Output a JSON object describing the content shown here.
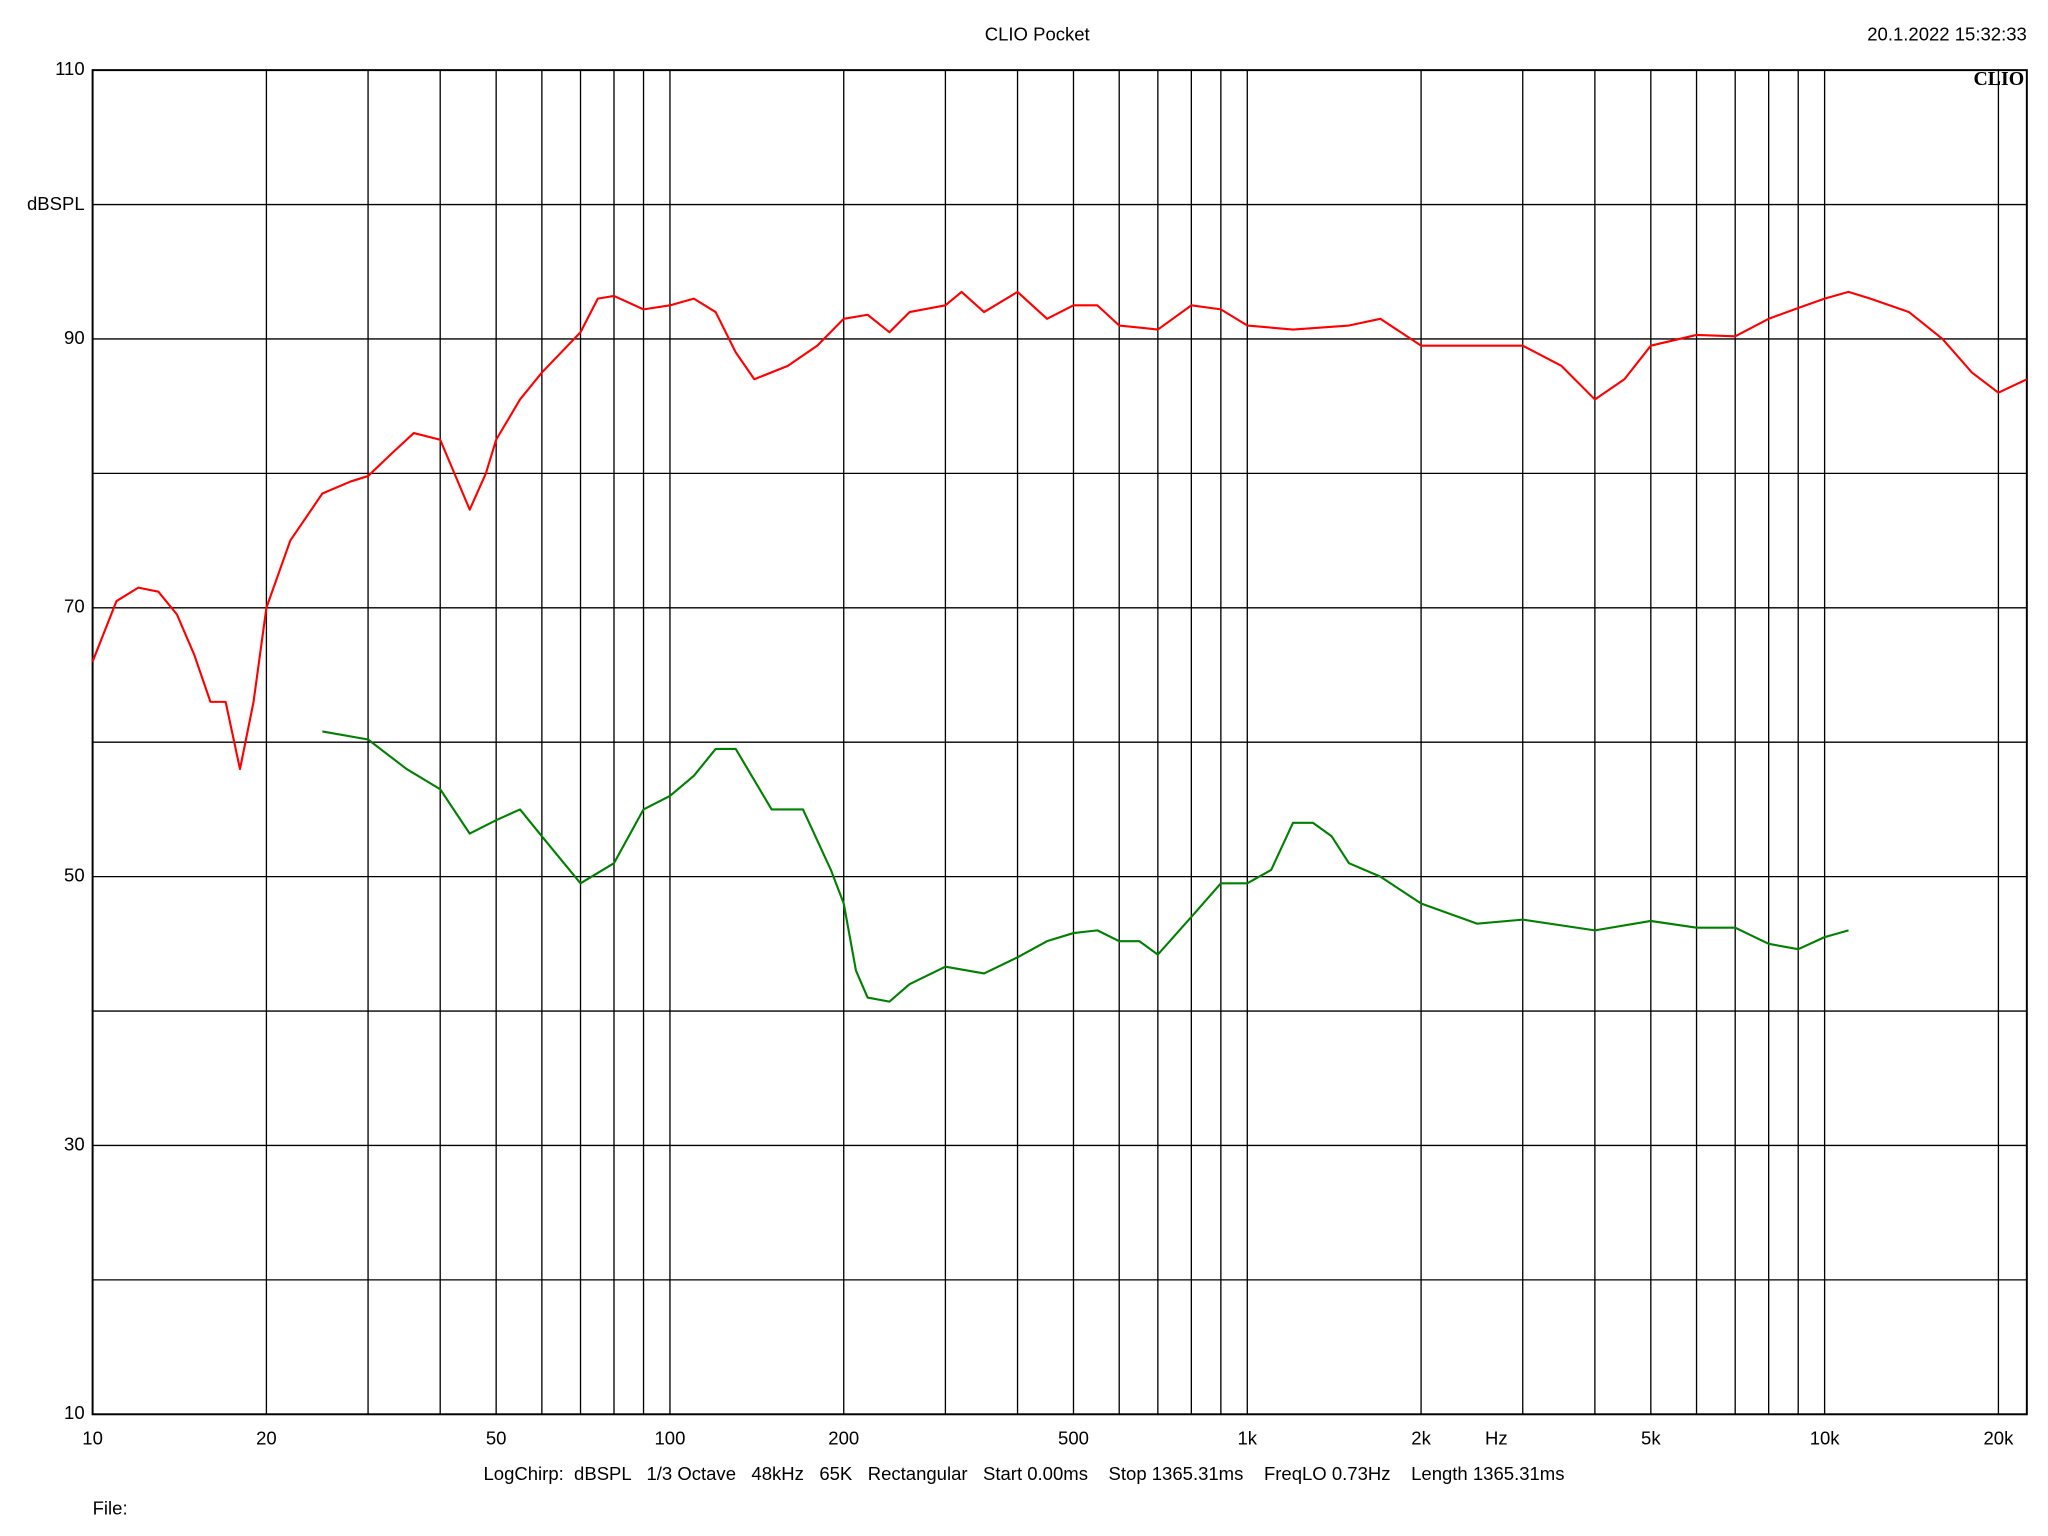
{
  "chart_data": {
    "type": "line",
    "title": "CLIO Pocket",
    "timestamp": "20.1.2022 15:32:33",
    "logo": "CLIO",
    "y_label": "dBSPL",
    "x_label": "Hz",
    "footer": "LogChirp:  dBSPL   1/3 Octave   48kHz   65K   Rectangular   Start 0.00ms    Stop 1365.31ms    FreqLO 0.73Hz    Length 1365.31ms",
    "file_label": "File:",
    "xscale": "log",
    "xlim": [
      10,
      22400
    ],
    "ylim": [
      10,
      110
    ],
    "xticks": [
      10,
      20,
      50,
      100,
      200,
      500,
      {
        "value": 1000,
        "label": "1k"
      },
      {
        "value": 2000,
        "label": "2k"
      },
      {
        "value": 5000,
        "label": "5k"
      },
      {
        "value": 10000,
        "label": "10k"
      },
      {
        "value": 20000,
        "label": "20k"
      }
    ],
    "yticks": [
      10,
      30,
      50,
      70,
      90,
      110
    ],
    "xminor": [
      30,
      40,
      60,
      70,
      80,
      90,
      300,
      400,
      600,
      700,
      800,
      900,
      3000,
      4000,
      6000,
      7000,
      8000,
      9000
    ],
    "yminor": [
      20,
      40,
      60,
      80,
      100
    ],
    "grid": true,
    "series": [
      {
        "color": "#ff0000",
        "x": [
          10,
          11,
          12,
          13,
          14,
          15,
          16,
          17,
          18,
          19,
          20,
          22,
          25,
          28,
          30,
          33,
          36,
          40,
          45,
          48,
          50,
          55,
          60,
          70,
          75,
          80,
          90,
          100,
          110,
          120,
          130,
          140,
          160,
          180,
          200,
          220,
          240,
          260,
          300,
          320,
          350,
          400,
          450,
          500,
          550,
          600,
          700,
          800,
          900,
          1000,
          1200,
          1500,
          1700,
          2000,
          2500,
          3000,
          3500,
          4000,
          4500,
          5000,
          6000,
          7000,
          8000,
          9000,
          10000,
          11000,
          12000,
          14000,
          16000,
          18000,
          20000,
          22400
        ],
        "values": [
          66,
          70.5,
          71.5,
          71.2,
          69.5,
          66.5,
          63,
          63,
          58,
          63,
          70,
          75,
          78.5,
          79.4,
          79.8,
          81.5,
          83,
          82.5,
          77.3,
          80,
          82.5,
          85.5,
          87.5,
          90.5,
          93,
          93.2,
          92.2,
          92.5,
          93,
          92,
          89,
          87,
          88,
          89.5,
          91.5,
          91.8,
          90.5,
          92,
          92.5,
          93.5,
          92,
          93.5,
          91.5,
          92.5,
          92.5,
          91,
          90.7,
          92.5,
          92.2,
          91,
          90.7,
          91,
          91.5,
          89.5,
          89.5,
          89.5,
          88,
          85.5,
          87,
          89.5,
          90.3,
          90.2,
          91.5,
          92.3,
          93,
          93.5,
          93,
          92,
          90,
          87.5,
          86,
          87
        ]
      },
      {
        "color": "#008000",
        "x": [
          25,
          30,
          35,
          40,
          45,
          50,
          55,
          60,
          70,
          80,
          90,
          100,
          110,
          120,
          130,
          150,
          170,
          190,
          200,
          210,
          220,
          240,
          260,
          300,
          350,
          400,
          450,
          500,
          550,
          600,
          650,
          700,
          800,
          900,
          1000,
          1100,
          1200,
          1300,
          1400,
          1500,
          1700,
          2000,
          2500,
          3000,
          4000,
          5000,
          6000,
          7000,
          8000,
          9000,
          10000,
          11000
        ],
        "values": [
          60.8,
          60.2,
          58,
          56.5,
          53.2,
          54.2,
          55,
          53,
          49.5,
          51,
          55,
          56,
          57.5,
          59.5,
          59.5,
          55,
          55,
          50.5,
          48,
          43,
          41,
          40.7,
          42,
          43.3,
          42.8,
          44,
          45.2,
          45.8,
          46,
          45.2,
          45.2,
          44.2,
          47,
          49.5,
          49.5,
          50.5,
          54,
          54,
          53,
          51,
          50,
          48,
          46.5,
          46.8,
          46,
          46.7,
          46.2,
          46.2,
          45,
          44.6,
          45.5,
          46
        ]
      }
    ]
  }
}
